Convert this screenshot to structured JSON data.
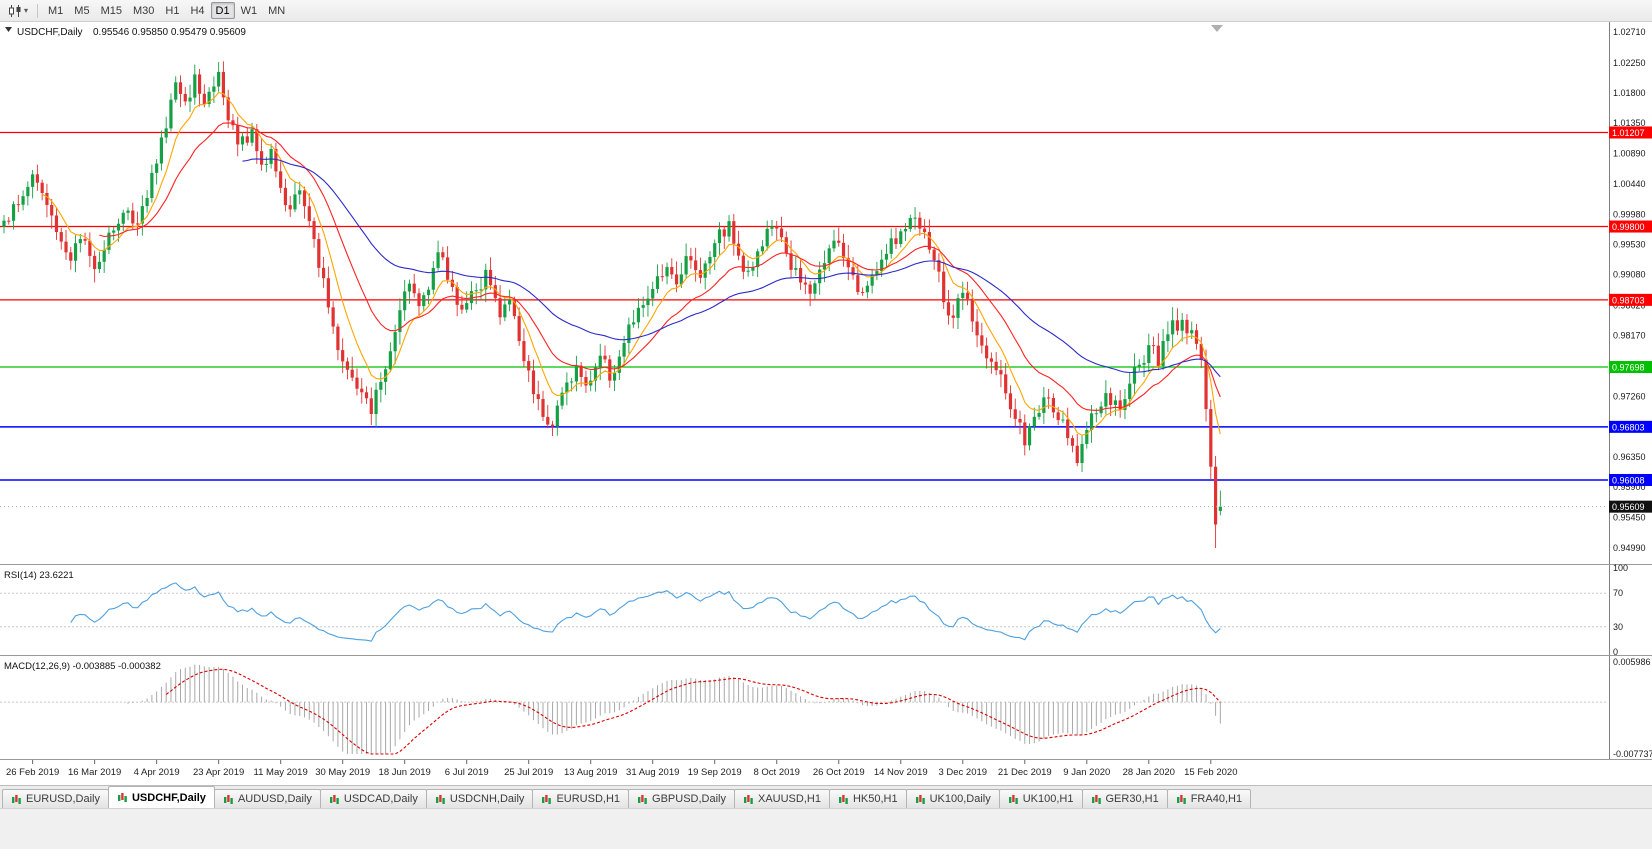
{
  "toolbar": {
    "timeframes": [
      {
        "label": "M1"
      },
      {
        "label": "M5"
      },
      {
        "label": "M15"
      },
      {
        "label": "M30"
      },
      {
        "label": "H1"
      },
      {
        "label": "H4"
      },
      {
        "label": "D1"
      },
      {
        "label": "W1"
      },
      {
        "label": "MN"
      }
    ],
    "active_timeframe": "D1"
  },
  "chart": {
    "title": "USDCHF,Daily",
    "ohlc_text": "0.95546 0.95850 0.95479 0.95609",
    "y_axis_labels": [
      "1.02710",
      "1.02250",
      "1.01800",
      "1.01350",
      "1.00890",
      "1.00440",
      "0.99980",
      "0.99530",
      "0.99080",
      "0.98620",
      "0.98170",
      "0.97720",
      "0.97260",
      "0.96810",
      "0.96350",
      "0.95900",
      "0.95450",
      "0.94990"
    ],
    "hlines": [
      {
        "price": 1.01207,
        "label": "1.01207",
        "color": "#FF0000"
      },
      {
        "price": 0.998,
        "label": "0.99800",
        "color": "#FF0000"
      },
      {
        "price": 0.98703,
        "label": "0.98703",
        "color": "#FF0000"
      },
      {
        "price": 0.97698,
        "label": "0.97698",
        "color": "#00C000"
      },
      {
        "price": 0.96803,
        "label": "0.96803",
        "color": "#0000FF"
      },
      {
        "price": 0.96008,
        "label": "0.96008",
        "color": "#0000FF"
      }
    ],
    "current_price": {
      "price": 0.95609,
      "label": "0.95609",
      "box_color": "#111111"
    },
    "date_labels": [
      "26 Feb 2019",
      "16 Mar 2019",
      "4 Apr 2019",
      "23 Apr 2019",
      "11 May 2019",
      "30 May 2019",
      "18 Jun 2019",
      "6 Jul 2019",
      "25 Jul 2019",
      "13 Aug 2019",
      "31 Aug 2019",
      "19 Sep 2019",
      "8 Oct 2019",
      "26 Oct 2019",
      "14 Nov 2019",
      "3 Dec 2019",
      "21 Dec 2019",
      "9 Jan 2020",
      "28 Jan 2020",
      "15 Feb 2020"
    ]
  },
  "rsi": {
    "title": "RSI(14) 23.6221",
    "period": 14,
    "value": 23.6221,
    "levels": [
      "100",
      "70",
      "30",
      "0"
    ],
    "line_color": "#4DA0E0"
  },
  "macd": {
    "title": "MACD(12,26,9) -0.003885 -0.000382",
    "fast": 12,
    "slow": 26,
    "signal_period": 9,
    "macd_value": -0.003885,
    "signal_value": -0.000382,
    "top_label": "0.005986",
    "bottom_label": "-0.007737",
    "hist_color": "#A8A8A8",
    "signal_color": "#DD0000"
  },
  "tabs": {
    "items": [
      {
        "label": "EURUSD,Daily"
      },
      {
        "label": "USDCHF,Daily",
        "active": true
      },
      {
        "label": "AUDUSD,Daily"
      },
      {
        "label": "USDCAD,Daily"
      },
      {
        "label": "USDCNH,Daily"
      },
      {
        "label": "EURUSD,H1"
      },
      {
        "label": "GBPUSD,Daily"
      },
      {
        "label": "XAUUSD,H1"
      },
      {
        "label": "HK50,H1"
      },
      {
        "label": "UK100,Daily"
      },
      {
        "label": "UK100,H1"
      },
      {
        "label": "GER30,H1"
      },
      {
        "label": "FRA40,H1"
      }
    ]
  },
  "colors": {
    "up": "#16A046",
    "down": "#E03232",
    "ma_fast": "#FFA500",
    "ma_mid": "#FF2222",
    "ma_slow": "#2B2BCC",
    "axis_text": "#1A1A1A"
  },
  "chart_data": {
    "type": "candlestick",
    "symbol": "USDCHF",
    "timeframe": "D1",
    "bars": 256,
    "y_range": {
      "top": 1.0286,
      "bottom": 0.94751
    },
    "close_anchors": [
      [
        0,
        0.999
      ],
      [
        3,
        1.0012
      ],
      [
        6,
        1.0058
      ],
      [
        8,
        1.003
      ],
      [
        11,
        0.9973
      ],
      [
        14,
        0.993
      ],
      [
        16,
        0.9961
      ],
      [
        19,
        0.9918
      ],
      [
        22,
        0.9971
      ],
      [
        26,
        1.0003
      ],
      [
        28,
        0.9986
      ],
      [
        30,
        1.0024
      ],
      [
        33,
        1.0112
      ],
      [
        36,
        1.0196
      ],
      [
        38,
        1.0168
      ],
      [
        40,
        1.0209
      ],
      [
        42,
        1.0164
      ],
      [
        45,
        1.0211
      ],
      [
        47,
        1.0139
      ],
      [
        49,
        1.0101
      ],
      [
        52,
        1.0127
      ],
      [
        54,
        1.0074
      ],
      [
        56,
        1.0097
      ],
      [
        58,
        1.0039
      ],
      [
        60,
        1.0007
      ],
      [
        62,
        1.0034
      ],
      [
        65,
        0.9961
      ],
      [
        67,
        0.9904
      ],
      [
        69,
        0.9829
      ],
      [
        71,
        0.9779
      ],
      [
        74,
        0.9737
      ],
      [
        77,
        0.9701
      ],
      [
        79,
        0.9747
      ],
      [
        82,
        0.9821
      ],
      [
        85,
        0.9894
      ],
      [
        87,
        0.9861
      ],
      [
        91,
        0.9941
      ],
      [
        93,
        0.9901
      ],
      [
        96,
        0.9857
      ],
      [
        99,
        0.9883
      ],
      [
        101,
        0.9917
      ],
      [
        104,
        0.9844
      ],
      [
        106,
        0.9871
      ],
      [
        109,
        0.9779
      ],
      [
        112,
        0.9721
      ],
      [
        115,
        0.9681
      ],
      [
        117,
        0.9731
      ],
      [
        120,
        0.9771
      ],
      [
        122,
        0.9741
      ],
      [
        125,
        0.9787
      ],
      [
        127,
        0.9751
      ],
      [
        130,
        0.9805
      ],
      [
        133,
        0.9857
      ],
      [
        136,
        0.9885
      ],
      [
        139,
        0.9921
      ],
      [
        141,
        0.9895
      ],
      [
        143,
        0.9935
      ],
      [
        146,
        0.9905
      ],
      [
        149,
        0.9957
      ],
      [
        152,
        0.9987
      ],
      [
        154,
        0.9935
      ],
      [
        156,
        0.9915
      ],
      [
        159,
        0.9951
      ],
      [
        161,
        0.9981
      ],
      [
        164,
        0.9941
      ],
      [
        167,
        0.9895
      ],
      [
        169,
        0.9879
      ],
      [
        172,
        0.9927
      ],
      [
        175,
        0.9957
      ],
      [
        177,
        0.9921
      ],
      [
        180,
        0.9881
      ],
      [
        182,
        0.9905
      ],
      [
        185,
        0.9941
      ],
      [
        188,
        0.9973
      ],
      [
        191,
        0.9995
      ],
      [
        193,
        0.9973
      ],
      [
        195,
        0.9929
      ],
      [
        197,
        0.9867
      ],
      [
        199,
        0.9844
      ],
      [
        201,
        0.9881
      ],
      [
        203,
        0.9839
      ],
      [
        205,
        0.9801
      ],
      [
        208,
        0.9765
      ],
      [
        210,
        0.9731
      ],
      [
        212,
        0.9691
      ],
      [
        214,
        0.9652
      ],
      [
        216,
        0.9694
      ],
      [
        218,
        0.9725
      ],
      [
        221,
        0.9691
      ],
      [
        223,
        0.9663
      ],
      [
        225,
        0.9628
      ],
      [
        227,
        0.9675
      ],
      [
        229,
        0.9701
      ],
      [
        231,
        0.9729
      ],
      [
        234,
        0.9705
      ],
      [
        236,
        0.9745
      ],
      [
        238,
        0.9775
      ],
      [
        240,
        0.9801
      ],
      [
        242,
        0.9771
      ],
      [
        244,
        0.9819
      ],
      [
        247,
        0.9841
      ],
      [
        249,
        0.9825
      ],
      [
        251,
        0.9781
      ],
      [
        252,
        0.9705
      ],
      [
        253,
        0.9621
      ],
      [
        254,
        0.9533
      ],
      [
        255,
        0.95609
      ]
    ],
    "last_bar": {
      "open": 0.95546,
      "high": 0.9585,
      "low": 0.95479,
      "close": 0.95609
    },
    "high_extreme": {
      "index": 45,
      "price": 1.0226
    },
    "low_extreme": {
      "index": 254,
      "price": 0.9499
    },
    "date_tick_first_bar": 6,
    "date_tick_bar_step": 13,
    "moving_averages": [
      {
        "type": "ema",
        "period": 8
      },
      {
        "type": "ema",
        "period": 20
      },
      {
        "type": "ema",
        "period": 50
      }
    ],
    "indicators": [
      {
        "name": "RSI",
        "period": 14,
        "last": 23.6221
      },
      {
        "name": "MACD",
        "params": [
          12,
          26,
          9
        ],
        "last_macd": -0.003885,
        "last_signal": -0.000382
      }
    ],
    "horizontal_levels": [
      1.01207,
      0.998,
      0.98703,
      0.97698,
      0.96803,
      0.96008
    ]
  }
}
